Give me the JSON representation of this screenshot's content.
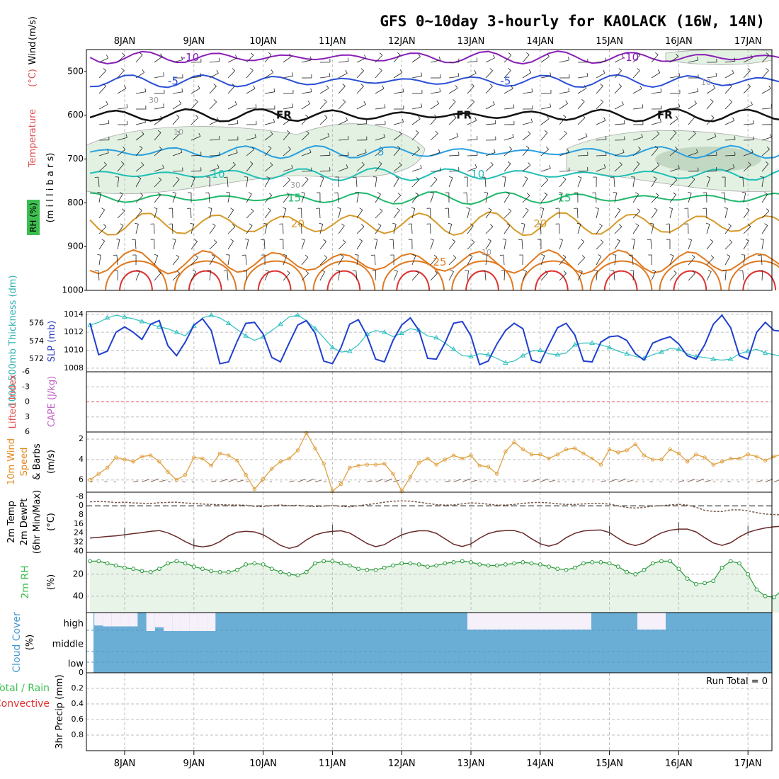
{
  "title": "GFS 0~10day 3-hourly for KAOLACK (16W, 14N)",
  "dates": [
    "8JAN",
    "9JAN",
    "10JAN",
    "11JAN",
    "12JAN",
    "13JAN",
    "14JAN",
    "15JAN",
    "16JAN",
    "17JAN"
  ],
  "colors": {
    "purple": "#8a1fb8",
    "blue": "#2a4fd6",
    "black": "#111111",
    "lightblue": "#2aa0e0",
    "teal": "#1fbfb5",
    "green": "#20b86a",
    "gold": "#d69a2a",
    "orange": "#e07a20",
    "red": "#e03030",
    "slp": "#2040d0",
    "thick": "#30c0c0",
    "wind": "#e0a040",
    "rhgreen": "#3cbf50",
    "cloud": "#6aaed6",
    "cloudgap": "#f6f0fa",
    "grid": "#bdbdbd"
  },
  "chart_data": [
    {
      "type": "line",
      "name": "upper-air-cross-section",
      "ylabel_parts": [
        "Temperature",
        "(°C)",
        "Wind",
        "(m/s)",
        "(m i l l i b a r s)",
        "RH (%)"
      ],
      "pressure_ticks": [
        500,
        600,
        700,
        800,
        900,
        1000
      ],
      "ylim": [
        450,
        1000
      ],
      "isotherms": [
        {
          "label": "-10",
          "mean_level": 468,
          "color": "purple",
          "label_days": [
            0.95,
            7.3
          ]
        },
        {
          "label": "-5",
          "mean_level": 522,
          "color": "blue",
          "label_days": [
            0.7,
            5.5
          ]
        },
        {
          "label": "FR",
          "mean_level": 600,
          "color": "black",
          "label_days": [
            2.3,
            4.9,
            7.8
          ]
        },
        {
          "label": "5",
          "mean_level": 684,
          "color": "lightblue",
          "label_days": [
            3.7
          ]
        },
        {
          "label": "10",
          "mean_level": 735,
          "color": "teal",
          "label_days": [
            1.35,
            5.1
          ]
        },
        {
          "label": "15",
          "mean_level": 789,
          "color": "green",
          "label_days": [
            2.45,
            6.35
          ]
        },
        {
          "label": "20",
          "mean_level": 848,
          "color": "gold",
          "label_days": [
            2.5,
            6.0
          ]
        },
        {
          "label": "25",
          "mean_level": 935,
          "color": "orange",
          "label_days": [
            4.55
          ]
        }
      ],
      "rh_contour_labels": [
        "10",
        "30"
      ]
    },
    {
      "type": "line",
      "name": "slp-thickness",
      "ylabel_left": "1000-500mb Thickness (dm)",
      "ylabel_right": "SLP (mb)",
      "left_ticks": [
        572,
        574,
        576
      ],
      "right_ticks": [
        1008,
        1010,
        1012,
        1014
      ],
      "ylim_slp": [
        1007.6,
        1014.3
      ],
      "series": [
        {
          "name": "SLP (mb)",
          "values": [
            1013.0,
            1009.5,
            1009.9,
            1012.0,
            1012.6,
            1012.0,
            1011.2,
            1012.9,
            1013.3,
            1010.5,
            1009.4,
            1010.9,
            1012.8,
            1013.5,
            1012.2,
            1008.5,
            1008.7,
            1011.0,
            1013.0,
            1013.1,
            1011.8,
            1009.2,
            1008.7,
            1010.8,
            1012.8,
            1013.3,
            1011.9,
            1008.8,
            1008.5,
            1010.3,
            1012.9,
            1013.4,
            1011.6,
            1009.0,
            1008.7,
            1011.1,
            1012.8,
            1013.6,
            1012.2,
            1009.1,
            1009.0,
            1010.8,
            1013.0,
            1013.2,
            1011.6,
            1008.4,
            1008.8,
            1010.7,
            1012.2,
            1013.0,
            1012.4,
            1008.9,
            1008.6,
            1010.6,
            1012.5,
            1013.0,
            1011.7,
            1008.8,
            1008.7,
            1010.9,
            1011.5,
            1011.6,
            1011.1,
            1009.6,
            1008.9,
            1010.8,
            1011.2,
            1011.5,
            1010.7,
            1009.4,
            1009.0,
            1010.6,
            1012.9,
            1013.9,
            1012.5,
            1009.4,
            1009.0,
            1012.0,
            1013.1,
            1012.2,
            1012.1
          ]
        },
        {
          "name": "Thickness (dm)",
          "values": [
            1012.8,
            1013.1,
            1013.6,
            1013.9,
            1013.7,
            1013.5,
            1013.2,
            1012.9,
            1012.6,
            1012.4,
            1012.0,
            1011.6,
            1012.7,
            1013.6,
            1013.9,
            1013.6,
            1013.0,
            1012.3,
            1011.6,
            1011.1,
            1011.5,
            1012.2,
            1012.9,
            1013.7,
            1013.9,
            1013.3,
            1012.4,
            1011.4,
            1010.3,
            1009.8,
            1009.9,
            1010.6,
            1011.8,
            1012.2,
            1012.0,
            1011.5,
            1011.9,
            1012.4,
            1012.2,
            1011.6,
            1011.4,
            1010.8,
            1010.1,
            1009.4,
            1009.3,
            1009.6,
            1009.5,
            1009.1,
            1008.6,
            1008.8,
            1009.4,
            1009.9,
            1010.0,
            1009.6,
            1009.5,
            1009.7,
            1010.6,
            1010.8,
            1010.8,
            1010.6,
            1010.3,
            1009.9,
            1009.6,
            1009.3,
            1009.1,
            1009.5,
            1009.8,
            1010.2,
            1010.1,
            1009.6,
            1009.3,
            1009.2,
            1009.0,
            1008.9,
            1009.0,
            1009.6,
            1009.9,
            1010.1,
            1009.7,
            1009.5,
            1009.3
          ]
        }
      ]
    },
    {
      "type": "line",
      "name": "lifted-index-cape",
      "ylabel_left": "Lifted Index",
      "ylabel_right": "CAPE (J/kg)",
      "ticks": [
        "-6",
        "-3",
        "0",
        "3",
        "6"
      ],
      "ylim": [
        -6,
        6
      ],
      "zero_line": 0
    },
    {
      "type": "line",
      "name": "10m-wind",
      "ylabel": "10m Wind Speed & Barbs (m/s)",
      "ylabel_parts": [
        "10m Wind",
        "Speed",
        "& Barbs",
        "(m/s)"
      ],
      "ticks": [
        2,
        4,
        6
      ],
      "ylim": [
        1.3,
        7.2
      ],
      "series": [
        {
          "name": "Speed (m/s)",
          "values": [
            6.0,
            5.4,
            4.8,
            3.8,
            4.0,
            4.2,
            3.7,
            3.6,
            4.2,
            5.2,
            6.0,
            5.5,
            3.8,
            3.9,
            4.6,
            3.4,
            3.6,
            4.1,
            5.5,
            6.9,
            5.9,
            4.9,
            4.2,
            3.9,
            3.1,
            1.4,
            2.9,
            4.4,
            7.1,
            6.4,
            4.8,
            4.6,
            4.5,
            4.5,
            4.4,
            5.4,
            7.1,
            5.7,
            4.3,
            3.9,
            4.5,
            4.0,
            3.6,
            3.9,
            3.6,
            4.6,
            4.7,
            5.4,
            3.2,
            2.3,
            3.0,
            3.5,
            3.5,
            3.9,
            3.5,
            3.0,
            2.9,
            3.4,
            3.9,
            4.5,
            3.0,
            3.3,
            3.1,
            2.5,
            3.6,
            4.0,
            4.0,
            3.0,
            3.4,
            4.2,
            3.5,
            3.8,
            4.5,
            4.2,
            3.9,
            3.9,
            3.5,
            3.7,
            4.1,
            3.7,
            3.5
          ]
        }
      ]
    },
    {
      "type": "area",
      "name": "2m-temp-dewpoint",
      "ylabel_parts": [
        "2m Temp",
        "2m DewPt",
        "(6hr Min/Max)",
        "(°C)"
      ],
      "ticks": [
        -8,
        0,
        8,
        16,
        24,
        32,
        40
      ],
      "ylim": [
        -12,
        41
      ],
      "series": [
        {
          "name": "2m Temp (°C)",
          "values": [
            28.4,
            27.7,
            27.0,
            26.4,
            25.5,
            24.5,
            23.6,
            22.4,
            21.8,
            23.8,
            27.2,
            31.5,
            35.0,
            36.2,
            35.0,
            31.5,
            26.5,
            23.2,
            22.5,
            23.0,
            25.4,
            30.0,
            34.8,
            37.5,
            35.5,
            30.0,
            25.7,
            23.5,
            22.5,
            22.0,
            24.0,
            28.5,
            33.2,
            36.0,
            34.2,
            29.5,
            25.6,
            23.2,
            22.0,
            22.0,
            24.2,
            29.0,
            33.8,
            35.8,
            33.5,
            28.5,
            24.5,
            22.5,
            21.8,
            21.8,
            24.0,
            29.0,
            33.4,
            35.5,
            33.3,
            28.0,
            24.2,
            22.2,
            21.5,
            21.3,
            23.5,
            28.5,
            33.0,
            35.0,
            32.8,
            27.8,
            23.8,
            21.5,
            20.5,
            20.5,
            23.0,
            28.0,
            32.7,
            34.8,
            32.5,
            27.5,
            23.4,
            21.2,
            19.5,
            18.5,
            18.0
          ]
        },
        {
          "name": "2m DewPt (°C)",
          "values": [
            -3.5,
            -3.8,
            -3.5,
            -2.9,
            -3.2,
            -2.6,
            -2.3,
            -2.0,
            -2.7,
            -3.0,
            -3.2,
            -2.5,
            -2.0,
            -1.6,
            -1.2,
            -1.0,
            -0.8,
            -0.7,
            -0.5,
            0.5,
            0.7,
            -0.2,
            -0.7,
            -0.2,
            -0.5,
            0.2,
            0.7,
            0.3,
            -0.2,
            0.4,
            0.9,
            0.0,
            -1.0,
            -2.0,
            -3.2,
            -4.0,
            -4.4,
            -4.1,
            -3.2,
            -2.1,
            -1.1,
            -0.6,
            -0.8,
            -1.7,
            -2.6,
            -2.3,
            -1.4,
            -0.6,
            -0.6,
            -1.3,
            -2.2,
            -2.8,
            -3.0,
            -2.6,
            -1.8,
            -1.3,
            -1.2,
            -1.7,
            -2.0,
            -2.0,
            -1.5,
            0.1,
            1.4,
            2.0,
            1.3,
            0.3,
            -0.1,
            -0.8,
            -1.3,
            -0.6,
            1.3,
            4.0,
            4.9,
            5.0,
            3.6,
            3.5,
            4.4,
            6.0,
            7.2,
            7.7,
            8.0
          ]
        }
      ]
    },
    {
      "type": "area",
      "name": "2m-rh",
      "ylabel": "2m RH",
      "unit": "(%)",
      "ticks": [
        20,
        40
      ],
      "ylim": [
        0,
        55
      ],
      "series": [
        {
          "name": "2m RH (%)",
          "values": [
            8,
            8,
            10,
            12,
            14,
            15,
            17,
            18,
            15,
            10,
            8,
            10,
            13,
            15,
            17,
            18,
            18,
            16,
            11,
            10,
            11,
            15,
            18,
            20,
            21,
            18,
            10,
            8,
            8,
            10,
            12,
            15,
            16,
            16,
            14,
            12,
            10,
            10,
            11,
            13,
            12,
            10,
            9,
            8,
            9,
            11,
            12,
            12,
            11,
            10,
            9,
            10,
            11,
            13,
            15,
            16,
            14,
            10,
            9,
            9,
            10,
            13,
            18,
            20,
            16,
            10,
            8,
            8,
            15,
            24,
            29,
            28,
            26,
            14,
            8,
            10,
            20,
            34,
            40,
            41,
            34
          ]
        }
      ]
    },
    {
      "type": "bar",
      "name": "cloud-cover",
      "ylabel": "Cloud Cover (%)",
      "ylabel_parts": [
        "Cloud Cover",
        "(%)"
      ],
      "levels": [
        "high",
        "middle",
        "low"
      ],
      "series": [
        {
          "name": "high cloud gap (%)",
          "values": [
            0,
            70,
            75,
            75,
            75,
            75,
            0,
            100,
            80,
            100,
            100,
            100,
            100,
            100,
            100,
            0,
            0,
            0,
            0,
            0,
            0,
            0,
            0,
            0,
            0,
            0,
            0,
            0,
            0,
            0,
            0,
            0,
            0,
            0,
            0,
            0,
            0,
            0,
            0,
            0,
            0,
            0,
            0,
            0,
            0,
            0,
            0,
            0,
            0,
            0,
            0,
            0,
            0,
            0,
            0,
            0,
            0,
            0,
            0,
            0,
            0,
            0,
            0,
            0,
            0,
            0,
            0,
            0,
            0,
            0,
            0,
            0,
            0,
            0,
            0,
            0,
            0,
            0,
            0,
            0,
            0
          ]
        }
      ]
    },
    {
      "type": "bar",
      "name": "3hr-precip",
      "ylabel": "3hr Precip (mm)",
      "ylabel_side_parts": [
        "Total / Rain",
        "Convective"
      ],
      "ticks": [
        "0",
        "0.2",
        "0.4",
        "0.6",
        "0.8"
      ],
      "ylim": [
        0,
        1.0
      ],
      "run_total_label": "Run Total = 0",
      "series": [
        {
          "name": "3hr Precip (mm)",
          "values": [
            0,
            0,
            0,
            0,
            0,
            0,
            0,
            0,
            0,
            0,
            0,
            0,
            0,
            0,
            0,
            0,
            0,
            0,
            0,
            0,
            0,
            0,
            0,
            0,
            0,
            0,
            0,
            0,
            0,
            0,
            0,
            0,
            0,
            0,
            0,
            0,
            0,
            0,
            0,
            0,
            0,
            0,
            0,
            0,
            0,
            0,
            0,
            0,
            0,
            0,
            0,
            0,
            0,
            0,
            0,
            0,
            0,
            0,
            0,
            0,
            0,
            0,
            0,
            0,
            0,
            0,
            0,
            0,
            0,
            0,
            0,
            0,
            0,
            0,
            0,
            0,
            0,
            0,
            0,
            0,
            0
          ]
        }
      ]
    }
  ]
}
